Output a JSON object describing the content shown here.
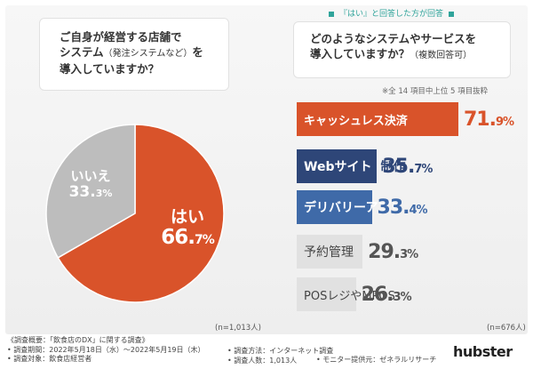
{
  "left": {
    "question_line1": "ご自身が経営する店舗で",
    "question_line2_a": "システム",
    "question_line2_b": "（発注システムなど）",
    "question_line2_c": "を",
    "question_line3": "導入していますか？",
    "n_label": "(n=1,013人)"
  },
  "right": {
    "legend_top": "『はい』と回答した方が回答",
    "question_line1": "どのようなシステムやサービスを",
    "question_line2_a": "導入していますか？",
    "question_line2_b": "（複数回答可）",
    "note": "※全 14 項目中上位 5 項目抜粋",
    "n_label": "(n=676人)"
  },
  "chart_data": [
    {
      "type": "pie",
      "slices": [
        {
          "label": "はい",
          "value": 66.7,
          "value_int": "66.",
          "value_dec": "7%",
          "color": "#d9532a"
        },
        {
          "label": "いいえ",
          "value": 33.3,
          "value_int": "33.",
          "value_dec": "3%",
          "color": "#bdbdbd"
        }
      ]
    },
    {
      "type": "bar",
      "orientation": "horizontal",
      "bars": [
        {
          "category": "キャッシュレス決済",
          "value": 71.9,
          "value_int": "71.",
          "value_dec": "9%",
          "color": "#d9532a",
          "value_color": "#d9532a"
        },
        {
          "category_a": "Webサイト",
          "category_b": "制作",
          "category": "Webサイト制作",
          "value": 35.7,
          "value_int": "35.",
          "value_dec": "7%",
          "color": "#2e4678",
          "value_color": "#2e4678"
        },
        {
          "category": "デリバリーアプリ",
          "value": 33.4,
          "value_int": "33.",
          "value_dec": "4%",
          "color": "#3f6aa8",
          "value_color": "#3f6aa8"
        },
        {
          "category": "予約管理",
          "value": 29.3,
          "value_int": "29.",
          "value_dec": "3%",
          "color": "#e1e1e1",
          "value_color": "#555555"
        },
        {
          "category": "POSレジやMPOS",
          "value": 26.3,
          "value_int": "26.",
          "value_dec": "3%",
          "color": "#e1e1e1",
          "value_color": "#555555"
        }
      ]
    }
  ],
  "footer": {
    "line1": "《調査概要：「飲食店のDX」に関する調査》",
    "line2": "• 調査期間：2022年5月18日（水）～2022年5月19日（木）",
    "line3": "• 調査対象：飲食店経営者",
    "col2_line1": "• 調査方法：インターネット調査",
    "col2_line2": "• 調査人数：1,013人",
    "col3": "• モニター提供元：ゼネラルリサーチ",
    "logo": "hubster"
  }
}
